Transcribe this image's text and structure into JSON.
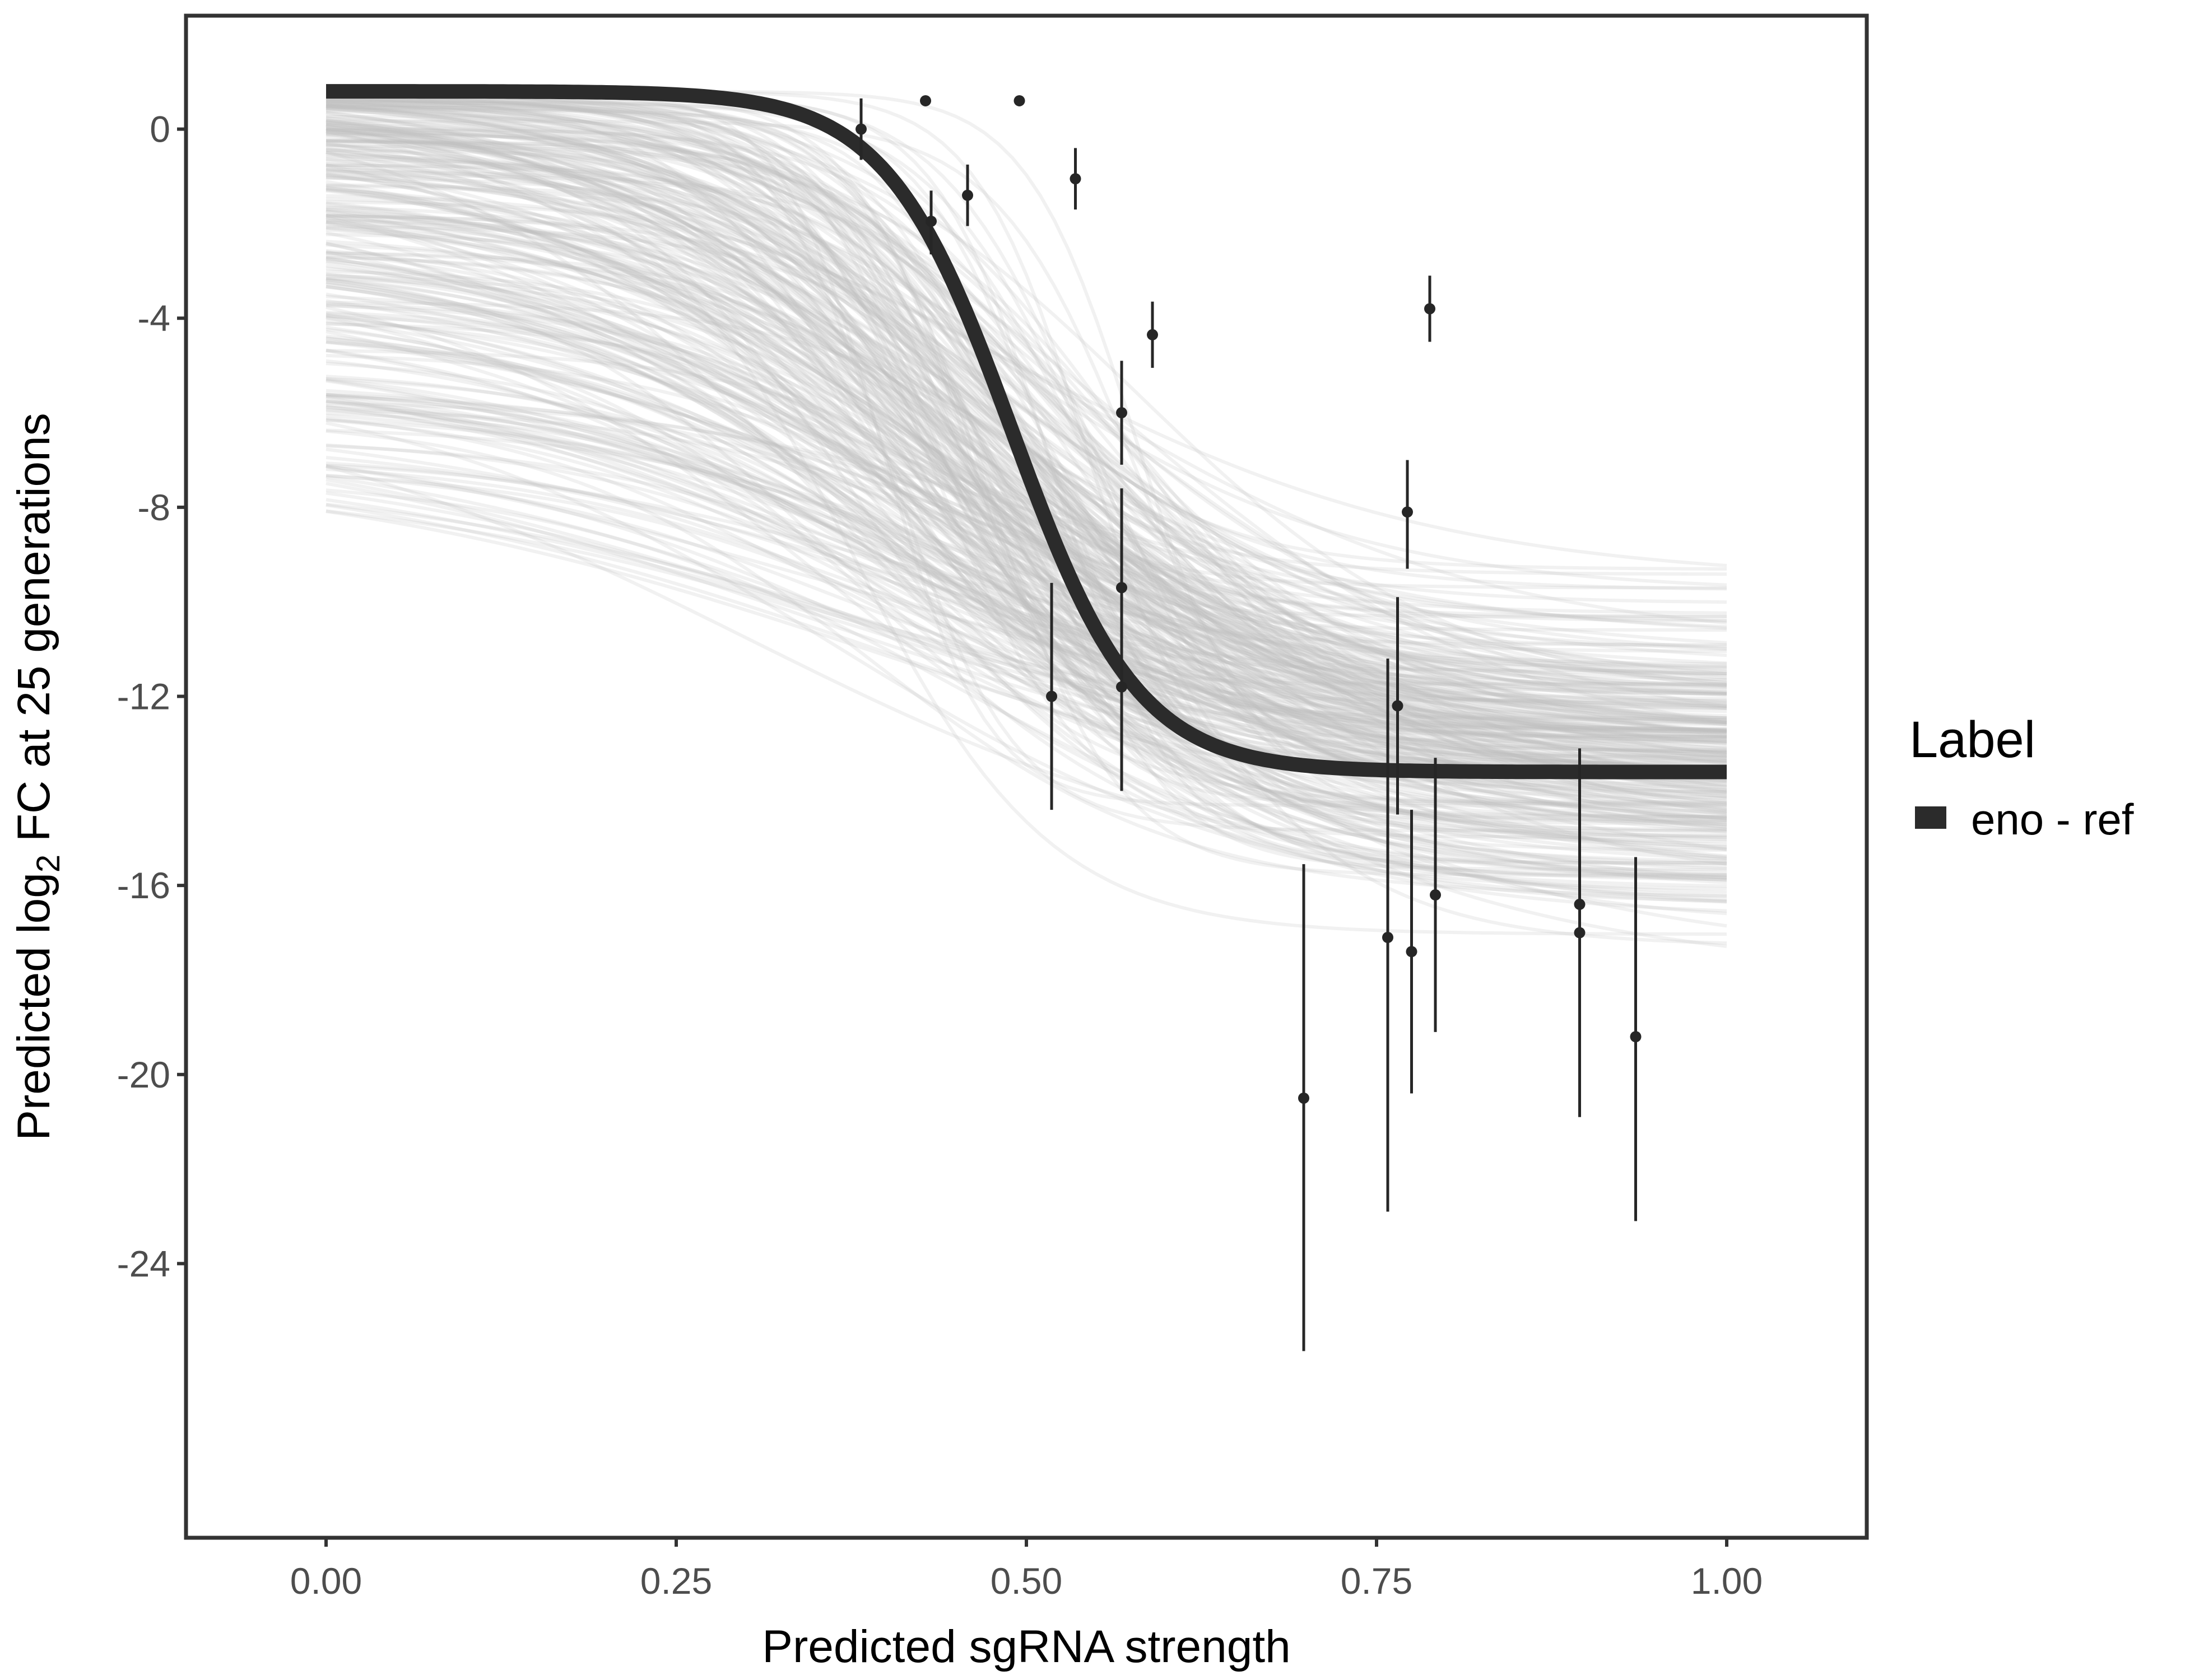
{
  "chart_data": {
    "type": "line",
    "xlabel": "Predicted sgRNA strength",
    "ylabel": {
      "prefix": "Predicted  log",
      "subscript": "2",
      "suffix": " FC at 25 generations"
    },
    "xlim": [
      -0.1,
      1.1
    ],
    "ylim": [
      -29.8,
      2.4
    ],
    "x_ticks": [
      0.0,
      0.25,
      0.5,
      0.75,
      1.0
    ],
    "x_tick_labels": [
      "0.00",
      "0.25",
      "0.50",
      "0.75",
      "1.00"
    ],
    "y_ticks": [
      0,
      -4,
      -8,
      -12,
      -16,
      -20,
      -24
    ],
    "y_tick_labels": [
      "0",
      "-4",
      "-8",
      "-12",
      "-16",
      "-20",
      "-24"
    ],
    "grid": false,
    "legend": {
      "title": "Label",
      "position": "right",
      "entries": [
        {
          "label": "eno - ref",
          "color": "#2b2b2b"
        }
      ]
    },
    "fit_curve": {
      "name": "eno - ref",
      "model": "logistic",
      "upper": 0.8,
      "lower": -13.6,
      "midpoint": 0.49,
      "scale": 0.045,
      "color": "#2b2b2b"
    },
    "posterior_draws": {
      "count": 300,
      "color": "#bdbdbd",
      "opacity": 0.22
    },
    "points": [
      {
        "x": 0.382,
        "y": 0.0,
        "ylo": -0.65,
        "yhi": 0.65
      },
      {
        "x": 0.428,
        "y": 0.6,
        "ylo": null,
        "yhi": null
      },
      {
        "x": 0.432,
        "y": -1.95,
        "ylo": -2.65,
        "yhi": -1.3
      },
      {
        "x": 0.458,
        "y": -1.4,
        "ylo": -2.05,
        "yhi": -0.75
      },
      {
        "x": 0.495,
        "y": 0.6,
        "ylo": null,
        "yhi": null
      },
      {
        "x": 0.535,
        "y": -1.05,
        "ylo": -1.7,
        "yhi": -0.4
      },
      {
        "x": 0.518,
        "y": -12.0,
        "ylo": -14.4,
        "yhi": -9.6
      },
      {
        "x": 0.568,
        "y": -6.0,
        "ylo": -7.1,
        "yhi": -4.9
      },
      {
        "x": 0.568,
        "y": -9.7,
        "ylo": -11.8,
        "yhi": -7.6
      },
      {
        "x": 0.568,
        "y": -11.8,
        "ylo": -14.0,
        "yhi": -9.6
      },
      {
        "x": 0.59,
        "y": -4.35,
        "ylo": -5.05,
        "yhi": -3.65
      },
      {
        "x": 0.698,
        "y": -20.5,
        "ylo": -25.85,
        "yhi": -15.55
      },
      {
        "x": 0.758,
        "y": -17.1,
        "ylo": -22.9,
        "yhi": -11.2
      },
      {
        "x": 0.765,
        "y": -12.2,
        "ylo": -14.5,
        "yhi": -9.9
      },
      {
        "x": 0.772,
        "y": -8.1,
        "ylo": -9.3,
        "yhi": -7.0
      },
      {
        "x": 0.775,
        "y": -17.4,
        "ylo": -20.4,
        "yhi": -14.4
      },
      {
        "x": 0.788,
        "y": -3.8,
        "ylo": -4.5,
        "yhi": -3.1
      },
      {
        "x": 0.792,
        "y": -16.2,
        "ylo": -19.1,
        "yhi": -13.3
      },
      {
        "x": 0.895,
        "y": -16.4,
        "ylo": -19.6,
        "yhi": -13.2
      },
      {
        "x": 0.895,
        "y": -17.0,
        "ylo": -20.9,
        "yhi": -13.1
      },
      {
        "x": 0.935,
        "y": -19.2,
        "ylo": -23.1,
        "yhi": -15.4
      }
    ]
  }
}
